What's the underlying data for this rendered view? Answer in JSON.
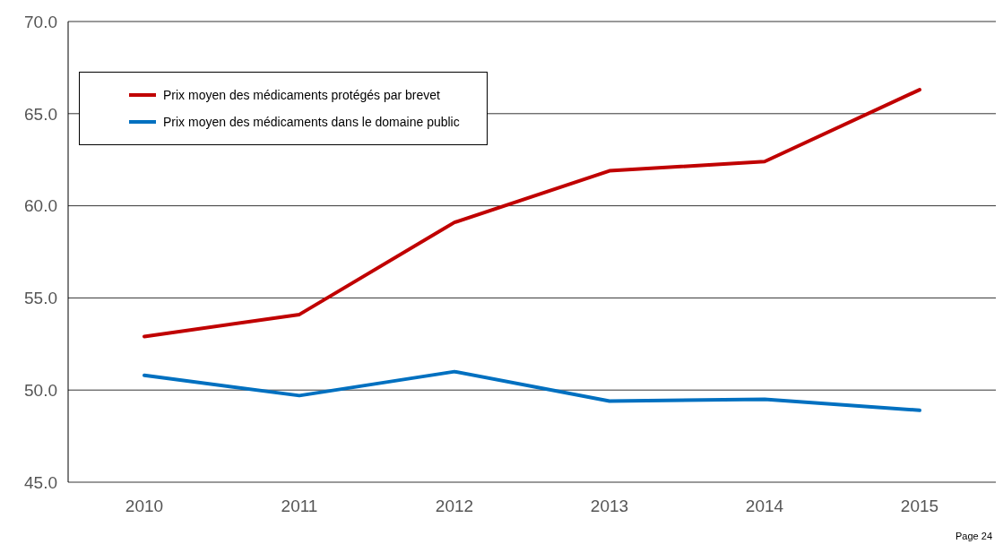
{
  "chart_data": {
    "type": "line",
    "categories": [
      "2010",
      "2011",
      "2012",
      "2013",
      "2014",
      "2015"
    ],
    "series": [
      {
        "name": "Prix moyen des médicaments protégés par brevet",
        "color": "#c00000",
        "values": [
          52.9,
          54.1,
          59.1,
          61.9,
          62.4,
          66.3
        ]
      },
      {
        "name": "Prix moyen des médicaments dans le domaine public",
        "color": "#0070c0",
        "values": [
          50.8,
          49.7,
          51.0,
          49.4,
          49.5,
          48.9
        ]
      }
    ],
    "ylim": [
      45,
      70
    ],
    "yticks": [
      {
        "value": 45,
        "label": "45.0"
      },
      {
        "value": 50,
        "label": "50.0"
      },
      {
        "value": 55,
        "label": "55.0"
      },
      {
        "value": 60,
        "label": "60.0"
      },
      {
        "value": 65,
        "label": "65.0"
      },
      {
        "value": 70,
        "label": "70.0"
      }
    ],
    "grid": "y",
    "legend": "top left",
    "marker": "none",
    "line_style": "solid",
    "annotations": [
      "Page 24"
    ]
  }
}
